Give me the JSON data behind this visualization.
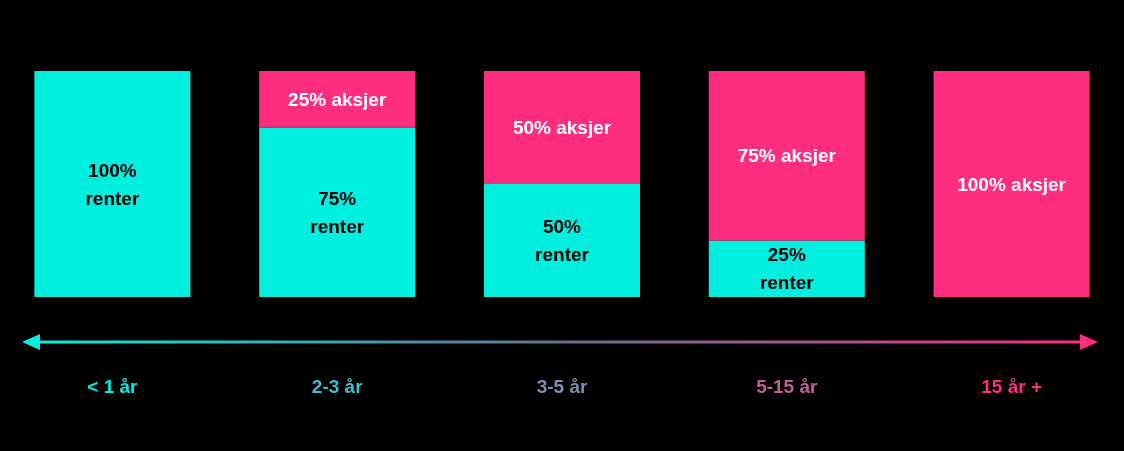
{
  "chart_data": {
    "type": "bar",
    "stacked": true,
    "categories": [
      "< 1 år",
      "2-3 år",
      "3-5 år",
      "5-15 år",
      "15 år +"
    ],
    "series": [
      {
        "color": "#00f0e0",
        "values": [
          100,
          75,
          50,
          25,
          0
        ],
        "value_labels": [
          "100%\nrenter",
          "75%\nrenter",
          "50%\nrenter",
          "25%\nrenter",
          null
        ]
      },
      {
        "color": "#ff2d80",
        "values": [
          0,
          25,
          50,
          75,
          100
        ],
        "value_labels": [
          null,
          "25% aksjer",
          "50% aksjer",
          "75% aksjer",
          "100% aksjer"
        ]
      }
    ]
  }
}
